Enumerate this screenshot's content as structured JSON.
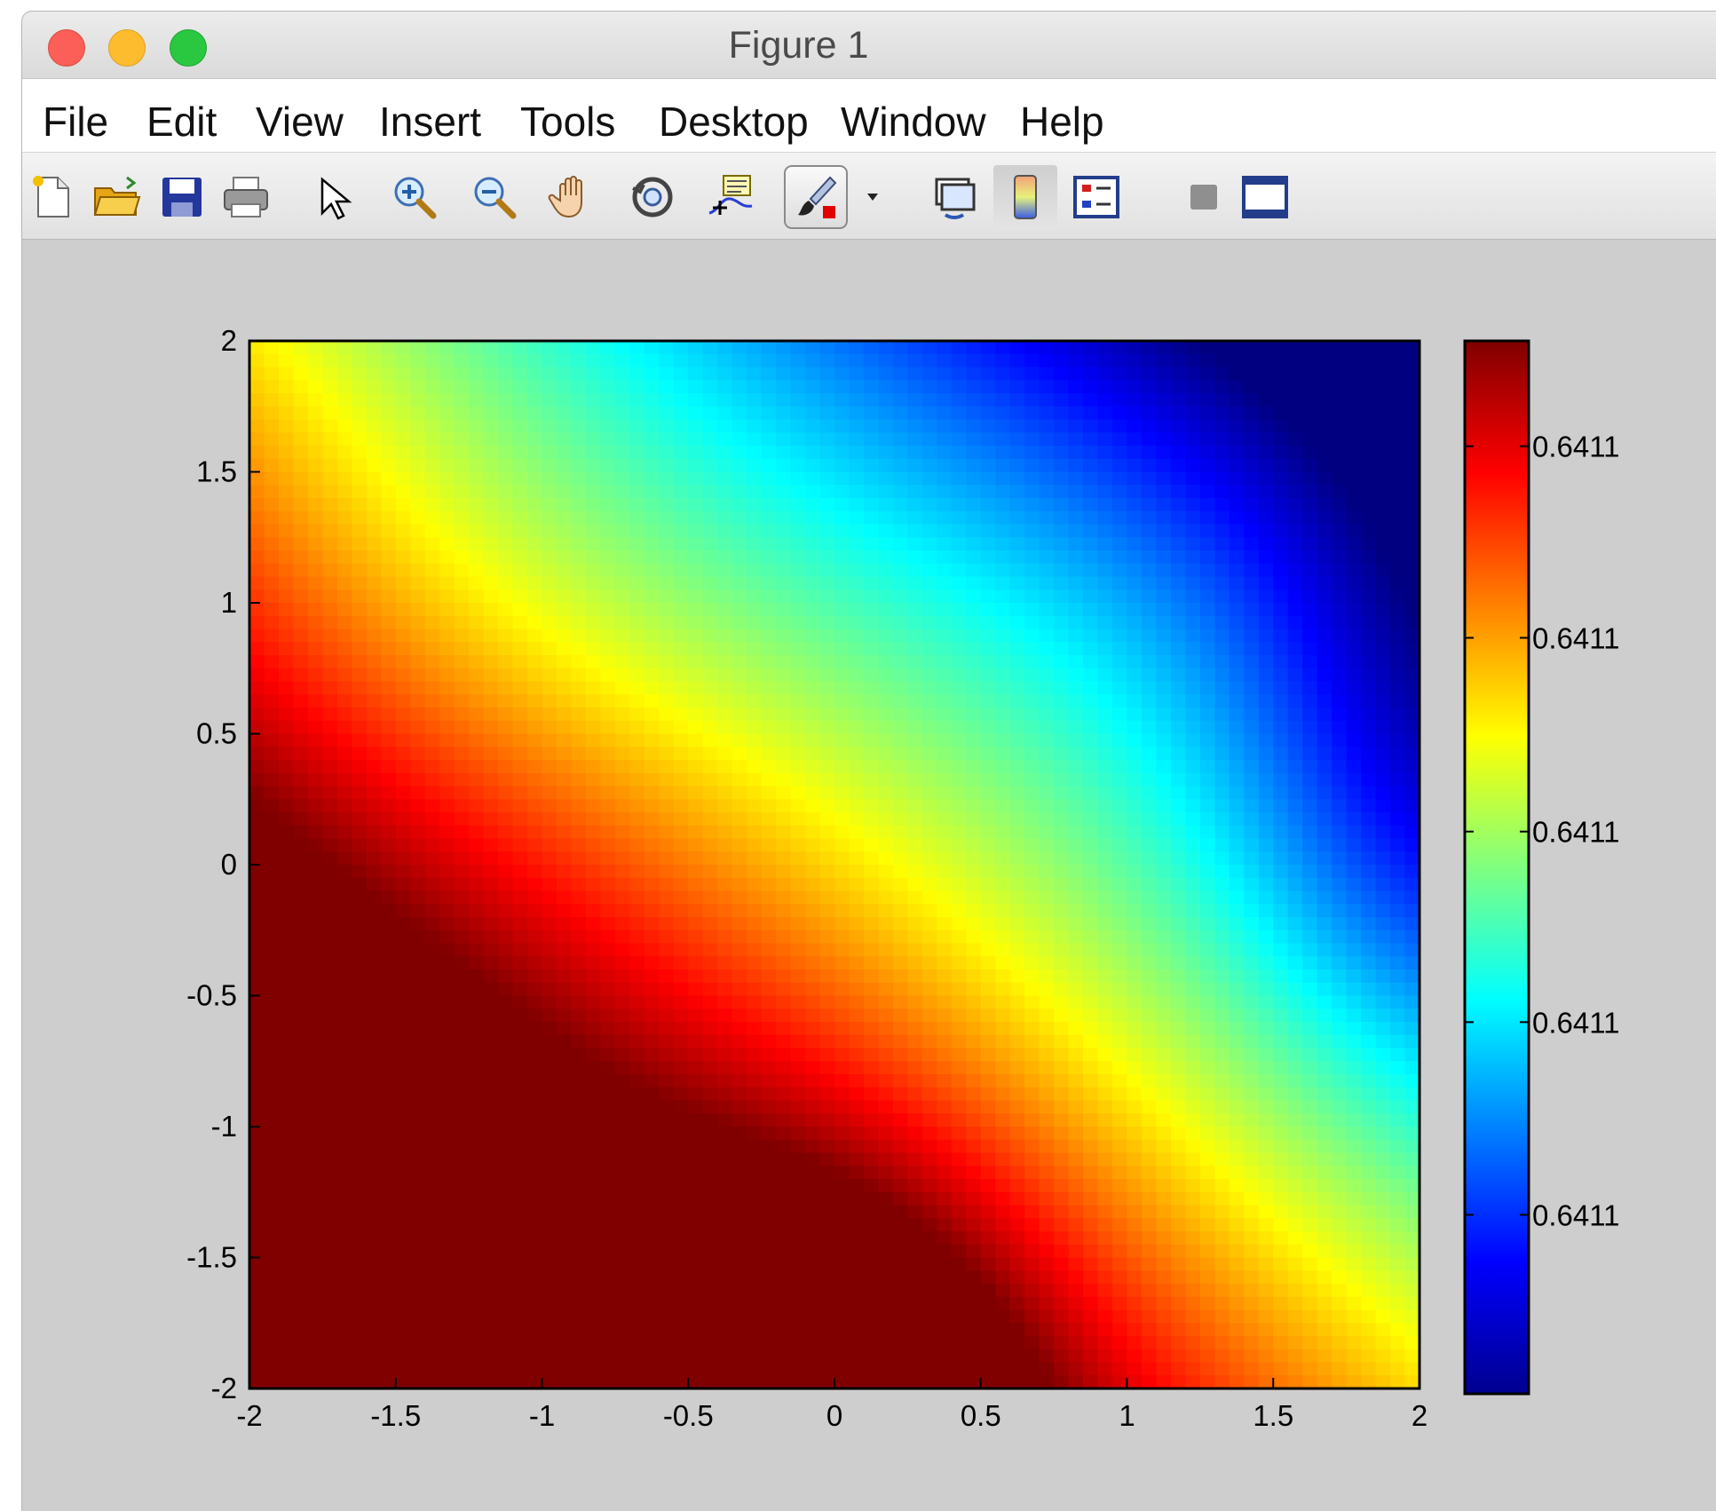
{
  "window": {
    "title": "Figure 1",
    "controls": [
      "close",
      "minimize",
      "zoom"
    ]
  },
  "menubar": {
    "items": [
      {
        "label": "File"
      },
      {
        "label": "Edit"
      },
      {
        "label": "View"
      },
      {
        "label": "Insert"
      },
      {
        "label": "Tools"
      },
      {
        "label": "Desktop"
      },
      {
        "label": "Window"
      },
      {
        "label": "Help"
      }
    ]
  },
  "toolbar": {
    "tools": [
      "new-figure-icon",
      "open-file-icon",
      "save-icon",
      "print-icon",
      "edit-plot-pointer-icon",
      "zoom-in-icon",
      "zoom-out-icon",
      "pan-hand-icon",
      "rotate-3d-icon",
      "data-cursor-icon",
      "brush-icon",
      "brush-dropdown-icon",
      "link-plot-icon",
      "insert-colorbar-icon",
      "insert-legend-icon",
      "hide-plot-tools-icon",
      "show-plot-tools-icon"
    ],
    "active": [
      "brush-icon",
      "insert-colorbar-icon"
    ]
  },
  "chart_data": {
    "type": "heatmap",
    "colormap": "jet",
    "x_range": [
      -2,
      2
    ],
    "y_range": [
      -2,
      2
    ],
    "x_ticks": [
      -2,
      -1.5,
      -1,
      -0.5,
      0,
      0.5,
      1,
      1.5,
      2
    ],
    "y_ticks": [
      -2,
      -1.5,
      -1,
      -0.5,
      0,
      0.5,
      1,
      1.5,
      2
    ],
    "x_tick_labels": [
      "-2",
      "-1.5",
      "-1",
      "-0.5",
      "0",
      "0.5",
      "1",
      "1.5",
      "2"
    ],
    "y_tick_labels": [
      "-2",
      "-1.5",
      "-1",
      "-0.5",
      "0",
      "0.5",
      "1",
      "1.5",
      "2"
    ],
    "colorbar": {
      "tick_labels": [
        "0.6411",
        "0.6411",
        "0.6411",
        "0.6411",
        "0.6411"
      ],
      "tick_fractions": [
        0.9,
        0.718,
        0.534,
        0.353,
        0.17
      ]
    },
    "field_trend": "high (dark red) near x=0, y=-2 and across the lower-left; decreasing diagonally to low (dark blue) along the right edge near x=2, y=0.5 to 0",
    "grid": false,
    "colors": {
      "jet_dark_blue": "#00008f",
      "jet_blue": "#0000ff",
      "jet_cyan": "#00ffff",
      "jet_yellow": "#ffff00",
      "jet_red": "#ff0000",
      "jet_dark_red": "#800000"
    }
  }
}
